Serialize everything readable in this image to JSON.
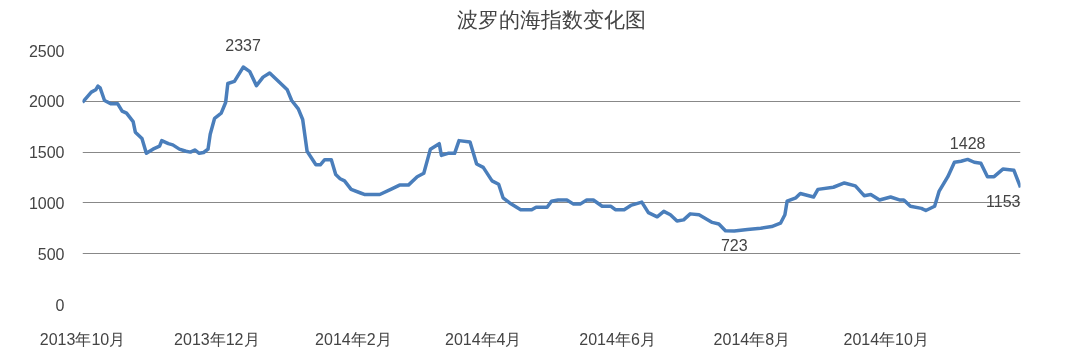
{
  "chart_data": {
    "type": "line",
    "title": "波罗的海指数变化图",
    "x": [
      "2013-10-01",
      "2013-10-05",
      "2013-10-07",
      "2013-10-08",
      "2013-10-09",
      "2013-10-11",
      "2013-10-14",
      "2013-10-17",
      "2013-10-19",
      "2013-10-21",
      "2013-10-24",
      "2013-10-25",
      "2013-10-28",
      "2013-10-30",
      "2013-11-02",
      "2013-11-05",
      "2013-11-06",
      "2013-11-09",
      "2013-11-11",
      "2013-11-14",
      "2013-11-17",
      "2013-11-19",
      "2013-11-21",
      "2013-11-23",
      "2013-11-25",
      "2013-11-27",
      "2013-11-28",
      "2013-11-30",
      "2013-12-03",
      "2013-12-05",
      "2013-12-06",
      "2013-12-09",
      "2013-12-13",
      "2013-12-16",
      "2013-12-19",
      "2013-12-22",
      "2013-12-25",
      "2013-12-28",
      "2014-01-02",
      "2014-01-04",
      "2014-01-07",
      "2014-01-09",
      "2014-01-11",
      "2014-01-15",
      "2014-01-17",
      "2014-01-19",
      "2014-01-22",
      "2014-01-24",
      "2014-01-26",
      "2014-01-28",
      "2014-01-31",
      "2014-02-04",
      "2014-02-06",
      "2014-02-13",
      "2014-02-18",
      "2014-02-22",
      "2014-02-26",
      "2014-03-02",
      "2014-03-05",
      "2014-03-08",
      "2014-03-12",
      "2014-03-13",
      "2014-03-16",
      "2014-03-19",
      "2014-03-21",
      "2014-03-26",
      "2014-03-29",
      "2014-04-01",
      "2014-04-05",
      "2014-04-08",
      "2014-04-10",
      "2014-04-13",
      "2014-04-18",
      "2014-04-23",
      "2014-04-25",
      "2014-04-30",
      "2014-05-02",
      "2014-05-05",
      "2014-05-09",
      "2014-05-12",
      "2014-05-15",
      "2014-05-18",
      "2014-05-21",
      "2014-05-25",
      "2014-05-29",
      "2014-05-31",
      "2014-06-04",
      "2014-06-07",
      "2014-06-12",
      "2014-06-15",
      "2014-06-19",
      "2014-06-22",
      "2014-06-25",
      "2014-06-28",
      "2014-07-01",
      "2014-07-04",
      "2014-07-08",
      "2014-07-14",
      "2014-07-17",
      "2014-07-20",
      "2014-07-24",
      "2014-07-30",
      "2014-08-05",
      "2014-08-10",
      "2014-08-14",
      "2014-08-16",
      "2014-08-17",
      "2014-08-21",
      "2014-08-23",
      "2014-08-29",
      "2014-08-31",
      "2014-09-07",
      "2014-09-12",
      "2014-09-17",
      "2014-09-21",
      "2014-09-24",
      "2014-09-28",
      "2014-10-03",
      "2014-10-07",
      "2014-10-09",
      "2014-10-12",
      "2014-10-17",
      "2014-10-19",
      "2014-10-23",
      "2014-10-25",
      "2014-10-29",
      "2014-11-01",
      "2014-11-04",
      "2014-11-07",
      "2014-11-10",
      "2014-11-13",
      "2014-11-16",
      "2014-11-19",
      "2014-11-23",
      "2014-11-28",
      "2014-12-01"
    ],
    "series": [
      {
        "color": "#4a7ebb",
        "values": [
          1990,
          2090,
          2113,
          2150,
          2133,
          2008,
          1975,
          1975,
          1904,
          1883,
          1800,
          1696,
          1633,
          1488,
          1529,
          1558,
          1613,
          1583,
          1571,
          1529,
          1508,
          1500,
          1521,
          1488,
          1496,
          1529,
          1675,
          1833,
          1883,
          1988,
          2175,
          2196,
          2337,
          2292,
          2154,
          2238,
          2279,
          2217,
          2113,
          2008,
          1925,
          1821,
          1508,
          1375,
          1375,
          1425,
          1425,
          1279,
          1238,
          1217,
          1133,
          1100,
          1083,
          1083,
          1133,
          1175,
          1175,
          1258,
          1292,
          1529,
          1583,
          1467,
          1488,
          1488,
          1613,
          1600,
          1383,
          1350,
          1217,
          1183,
          1050,
          1000,
          933,
          933,
          958,
          958,
          1017,
          1029,
          1029,
          988,
          988,
          1029,
          1029,
          967,
          967,
          933,
          933,
          975,
          1008,
          904,
          863,
          917,
          883,
          821,
          833,
          892,
          883,
          808,
          792,
          725,
          723,
          738,
          750,
          767,
          800,
          883,
          1017,
          1050,
          1092,
          1058,
          1133,
          1154,
          1196,
          1167,
          1071,
          1083,
          1029,
          1058,
          1029,
          1029,
          967,
          946,
          925,
          967,
          1113,
          1258,
          1400,
          1410,
          1428,
          1400,
          1390,
          1258,
          1258,
          1333,
          1321,
          1153
        ]
      }
    ],
    "xlim": [
      "2013-10-01",
      "2014-12-01"
    ],
    "xticks": [
      {
        "value": "2013-10-01",
        "label": "2013年10月"
      },
      {
        "value": "2013-12-01",
        "label": "2013年12月"
      },
      {
        "value": "2014-02-01",
        "label": "2014年2月"
      },
      {
        "value": "2014-04-01",
        "label": "2014年4月"
      },
      {
        "value": "2014-06-01",
        "label": "2014年6月"
      },
      {
        "value": "2014-08-01",
        "label": "2014年8月"
      },
      {
        "value": "2014-10-01",
        "label": "2014年10月"
      }
    ],
    "ylim": [
      0,
      2500
    ],
    "yticks": [
      0,
      500,
      1000,
      1500,
      2000,
      2500
    ],
    "grid": "y",
    "legend": false,
    "marker": "none",
    "line_style": "solid",
    "annotations": [
      {
        "text": "2337",
        "x": "2013-12-13",
        "y": 2337
      },
      {
        "text": "723",
        "x": "2014-07-24",
        "y": 723
      },
      {
        "text": "1428",
        "x": "2014-11-07",
        "y": 1428
      },
      {
        "text": "1153",
        "x": "2014-12-01",
        "y": 1153
      }
    ]
  }
}
